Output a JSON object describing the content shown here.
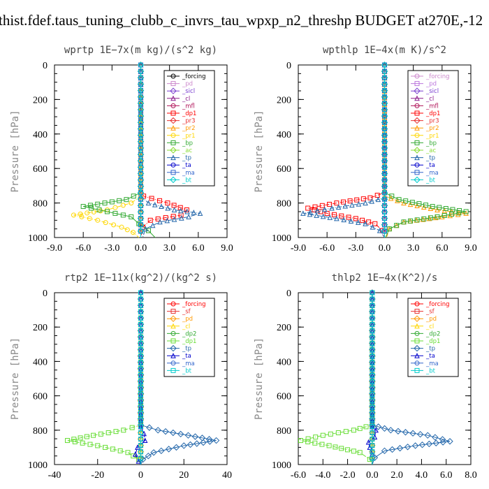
{
  "title": "thist.fdef.taus_tuning_clubb_c_invrs_tau_wpxp_n2_threshp  BUDGET at270E,-12",
  "chart_data": [
    {
      "type": "line",
      "title": "wprtp  1E−7x(m kg)/(s^2 kg)",
      "ylabel": "Pressure [hPa]",
      "xlim": [
        -9,
        9
      ],
      "ylim": [
        1000,
        0
      ],
      "grid": false,
      "legend_position": "top-right",
      "xticks": [
        "-9.0",
        "-6.0",
        "-3.0",
        "0.0",
        "3.0",
        "6.0",
        "9.0"
      ],
      "yticks": [
        "0",
        "200",
        "400",
        "600",
        "800",
        "1000"
      ],
      "legend": [
        "_forcing",
        "_pd",
        "_sicl",
        "_cl",
        "_mfl",
        "_dp1",
        "_pr3",
        "_pr2",
        "_pr1",
        "_bp",
        "_ac",
        "_tp",
        "_ta",
        "_ma",
        "_bt"
      ],
      "series": [
        {
          "name": "_forcing",
          "color": "#000000",
          "y": [
            0,
            1000
          ],
          "x": [
            0,
            0
          ]
        },
        {
          "name": "_pd",
          "color": "#cc88cc",
          "y": [
            0,
            1000
          ],
          "x": [
            0,
            0
          ]
        },
        {
          "name": "_sicl",
          "color": "#7a3fcf",
          "y": [
            0,
            1000
          ],
          "x": [
            0,
            0
          ]
        },
        {
          "name": "_cl",
          "color": "#8b1a8b",
          "y": [
            0,
            1000
          ],
          "x": [
            0,
            0
          ]
        },
        {
          "name": "_mfl",
          "color": "#b0145a",
          "y": [
            0,
            1000
          ],
          "x": [
            0,
            0
          ]
        },
        {
          "name": "_dp1",
          "color": "#ff0000",
          "y": [
            0,
            740,
            760,
            800,
            840,
            870,
            900,
            940,
            1000
          ],
          "x": [
            0,
            0,
            0.3,
            2.8,
            4.8,
            4.2,
            1.0,
            0.2,
            0
          ]
        },
        {
          "name": "_pr3",
          "color": "#e83030",
          "y": [
            0,
            1000
          ],
          "x": [
            0,
            0
          ]
        },
        {
          "name": "_pr2",
          "color": "#ff9900",
          "y": [
            0,
            1000
          ],
          "x": [
            0,
            0
          ]
        },
        {
          "name": "_pr1",
          "color": "#ffd700",
          "y": [
            0,
            760,
            800,
            840,
            870,
            900,
            940,
            970,
            1000
          ],
          "x": [
            0,
            0,
            -1.0,
            -3.5,
            -7.0,
            -4.5,
            -2.0,
            -0.8,
            -0.2
          ]
        },
        {
          "name": "_bp",
          "color": "#33aa33",
          "y": [
            0,
            740,
            780,
            820,
            850,
            880,
            920,
            960,
            1000
          ],
          "x": [
            0,
            0,
            -1.5,
            -6.0,
            -3.5,
            -1.0,
            -0.2,
            0.8,
            1.5
          ]
        },
        {
          "name": "_ac",
          "color": "#88dd33",
          "y": [
            0,
            1000
          ],
          "x": [
            0,
            0
          ]
        },
        {
          "name": "_tp",
          "color": "#2266aa",
          "y": [
            0,
            760,
            800,
            840,
            860,
            880,
            910,
            950,
            1000
          ],
          "x": [
            0,
            0,
            0.8,
            3.5,
            6.2,
            5.0,
            2.0,
            0.5,
            0.2
          ]
        },
        {
          "name": "_ta",
          "color": "#0000cc",
          "y": [
            0,
            1000
          ],
          "x": [
            0,
            0
          ]
        },
        {
          "name": "_ma",
          "color": "#3366cc",
          "y": [
            0,
            1000
          ],
          "x": [
            0,
            0
          ]
        },
        {
          "name": "_bt",
          "color": "#00cccc",
          "y": [
            0,
            1000
          ],
          "x": [
            0,
            0
          ]
        }
      ]
    },
    {
      "type": "line",
      "title": "wpthlp  1E−4x(m K)/s^2",
      "ylabel": "Pressure [hPa]",
      "xlim": [
        -9,
        9
      ],
      "ylim": [
        1000,
        0
      ],
      "grid": false,
      "legend_position": "top-right",
      "xticks": [
        "-9.0",
        "-6.0",
        "-3.0",
        "0.0",
        "3.0",
        "6.0",
        "9.0"
      ],
      "yticks": [
        "0",
        "200",
        "400",
        "600",
        "800",
        "1000"
      ],
      "legend": [
        "_forcing",
        "_pd",
        "_sicl",
        "_cl",
        "_mfl",
        "_dp1",
        "_pr3",
        "_pr2",
        "_pr1",
        "_bp",
        "_ac",
        "_tp",
        "_ta",
        "_ma",
        "_bt"
      ],
      "series": [
        {
          "name": "_forcing",
          "color": "#cc88cc",
          "y": [
            0,
            1000
          ],
          "x": [
            0,
            0
          ]
        },
        {
          "name": "_pd",
          "color": "#bb77dd",
          "y": [
            0,
            1000
          ],
          "x": [
            0,
            0
          ]
        },
        {
          "name": "_sicl",
          "color": "#7a3fcf",
          "y": [
            0,
            1000
          ],
          "x": [
            0,
            0
          ]
        },
        {
          "name": "_cl",
          "color": "#8b1a8b",
          "y": [
            0,
            1000
          ],
          "x": [
            0,
            0
          ]
        },
        {
          "name": "_mfl",
          "color": "#b0145a",
          "y": [
            0,
            1000
          ],
          "x": [
            0,
            0
          ]
        },
        {
          "name": "_dp1",
          "color": "#ff0000",
          "y": [
            0,
            740,
            770,
            800,
            830,
            860,
            890,
            920,
            960,
            1000
          ],
          "x": [
            0,
            0,
            -1.5,
            -5.0,
            -8.0,
            -6.0,
            -3.0,
            -1.0,
            -0.2,
            0
          ]
        },
        {
          "name": "_pr3",
          "color": "#e83030",
          "y": [
            0,
            1000
          ],
          "x": [
            0,
            0
          ]
        },
        {
          "name": "_pr2",
          "color": "#ff9900",
          "y": [
            0,
            760,
            800,
            840,
            860,
            880,
            910,
            950,
            1000
          ],
          "x": [
            0,
            0,
            2.0,
            5.5,
            8.5,
            6.0,
            2.0,
            0.5,
            0.2
          ]
        },
        {
          "name": "_pr1",
          "color": "#ffd700",
          "y": [
            0,
            1000
          ],
          "x": [
            0,
            0
          ]
        },
        {
          "name": "_bp",
          "color": "#33aa33",
          "y": [
            0,
            740,
            780,
            820,
            850,
            880,
            910,
            950,
            1000
          ],
          "x": [
            0,
            0,
            1.5,
            5.0,
            8.5,
            5.5,
            2.0,
            0.5,
            0.1
          ]
        },
        {
          "name": "_ac",
          "color": "#88dd33",
          "y": [
            0,
            1000
          ],
          "x": [
            0,
            0
          ]
        },
        {
          "name": "_tp",
          "color": "#2266aa",
          "y": [
            0,
            770,
            800,
            830,
            860,
            890,
            920,
            960,
            1000
          ],
          "x": [
            0,
            0,
            -2.0,
            -5.5,
            -8.5,
            -5.0,
            -2.0,
            -0.5,
            0
          ]
        },
        {
          "name": "_ta",
          "color": "#0000cc",
          "y": [
            0,
            1000
          ],
          "x": [
            0,
            0
          ]
        },
        {
          "name": "_ma",
          "color": "#3366cc",
          "y": [
            0,
            1000
          ],
          "x": [
            0,
            0
          ]
        },
        {
          "name": "_bt",
          "color": "#00cccc",
          "y": [
            0,
            1000
          ],
          "x": [
            0,
            0
          ]
        }
      ]
    },
    {
      "type": "line",
      "title": "rtp2  1E−11x(kg^2)/(kg^2 s)",
      "ylabel": "Pressure [hPa]",
      "xlim": [
        -40,
        40
      ],
      "ylim": [
        1000,
        0
      ],
      "grid": false,
      "legend_position": "top-right",
      "xticks": [
        "-40",
        "-20",
        "0",
        "20",
        "40"
      ],
      "yticks": [
        "0",
        "200",
        "400",
        "600",
        "800",
        "1000"
      ],
      "legend": [
        "_forcing",
        "_sf",
        "_pd",
        "_cl",
        "_dp2",
        "_dp1",
        "_tp",
        "_ta",
        "_ma",
        "_bt"
      ],
      "series": [
        {
          "name": "_forcing",
          "color": "#ff0000",
          "y": [
            0,
            1000
          ],
          "x": [
            0,
            0
          ]
        },
        {
          "name": "_sf",
          "color": "#e83030",
          "y": [
            0,
            1000
          ],
          "x": [
            0,
            0
          ]
        },
        {
          "name": "_pd",
          "color": "#ff9900",
          "y": [
            0,
            1000
          ],
          "x": [
            0,
            0
          ]
        },
        {
          "name": "_cl",
          "color": "#ffd700",
          "y": [
            0,
            1000
          ],
          "x": [
            0,
            0
          ]
        },
        {
          "name": "_dp2",
          "color": "#33aa33",
          "y": [
            0,
            1000
          ],
          "x": [
            0,
            0
          ]
        },
        {
          "name": "_dp1",
          "color": "#66dd33",
          "y": [
            0,
            770,
            800,
            830,
            860,
            890,
            930,
            970,
            1000
          ],
          "x": [
            0,
            0,
            -8,
            -22,
            -34,
            -20,
            -6,
            -1,
            0
          ]
        },
        {
          "name": "_tp",
          "color": "#2266aa",
          "y": [
            0,
            770,
            800,
            830,
            860,
            890,
            930,
            970,
            1000
          ],
          "x": [
            0,
            0,
            8,
            22,
            35,
            20,
            6,
            1,
            0
          ]
        },
        {
          "name": "_ta",
          "color": "#0000cc",
          "y": [
            0,
            780,
            820,
            860,
            900,
            940,
            980,
            1000
          ],
          "x": [
            0,
            0,
            1.5,
            2.0,
            -1.5,
            -2.5,
            -1.0,
            0
          ]
        },
        {
          "name": "_ma",
          "color": "#3366cc",
          "y": [
            0,
            1000
          ],
          "x": [
            0,
            0
          ]
        },
        {
          "name": "_bt",
          "color": "#00cccc",
          "y": [
            0,
            1000
          ],
          "x": [
            0,
            0
          ]
        }
      ]
    },
    {
      "type": "line",
      "title": "thlp2  1E−4x(K^2)/s",
      "ylabel": "Pressure [hPa]",
      "xlim": [
        -6,
        8
      ],
      "ylim": [
        1000,
        0
      ],
      "grid": false,
      "legend_position": "top-right",
      "xticks": [
        "-6.0",
        "-4.0",
        "-2.0",
        "0.0",
        "2.0",
        "4.0",
        "6.0",
        "8.0"
      ],
      "yticks": [
        "0",
        "200",
        "400",
        "600",
        "800",
        "1000"
      ],
      "legend": [
        "_forcing",
        "_sf",
        "_pd",
        "_cl",
        "_dp2",
        "_dp1",
        "_tp",
        "_ta",
        "_ma",
        "_bt"
      ],
      "series": [
        {
          "name": "_forcing",
          "color": "#ff0000",
          "y": [
            0,
            1000
          ],
          "x": [
            0,
            0
          ]
        },
        {
          "name": "_sf",
          "color": "#e83030",
          "y": [
            0,
            1000
          ],
          "x": [
            0,
            0
          ]
        },
        {
          "name": "_pd",
          "color": "#ff9900",
          "y": [
            0,
            1000
          ],
          "x": [
            0,
            0
          ]
        },
        {
          "name": "_cl",
          "color": "#ffd700",
          "y": [
            0,
            1000
          ],
          "x": [
            0,
            0
          ]
        },
        {
          "name": "_dp2",
          "color": "#33aa33",
          "y": [
            0,
            1000
          ],
          "x": [
            0,
            0
          ]
        },
        {
          "name": "_dp1",
          "color": "#66dd33",
          "y": [
            0,
            770,
            800,
            830,
            860,
            890,
            930,
            970,
            1000
          ],
          "x": [
            0,
            0,
            -1.5,
            -4.0,
            -5.8,
            -3.5,
            -1.0,
            -0.2,
            0
          ]
        },
        {
          "name": "_tp",
          "color": "#2266aa",
          "y": [
            0,
            770,
            800,
            830,
            865,
            890,
            920,
            960,
            1000
          ],
          "x": [
            0,
            0,
            1.5,
            4.5,
            6.3,
            3.5,
            1.0,
            0.2,
            0
          ]
        },
        {
          "name": "_ta",
          "color": "#0000cc",
          "y": [
            0,
            780,
            800,
            840,
            870,
            900,
            940,
            1000
          ],
          "x": [
            0,
            0,
            0.3,
            0.2,
            -0.3,
            -0.2,
            0,
            0
          ]
        },
        {
          "name": "_ma",
          "color": "#3366cc",
          "y": [
            0,
            1000
          ],
          "x": [
            0,
            0
          ]
        },
        {
          "name": "_bt",
          "color": "#00cccc",
          "y": [
            0,
            1000
          ],
          "x": [
            0,
            0
          ]
        }
      ]
    }
  ]
}
